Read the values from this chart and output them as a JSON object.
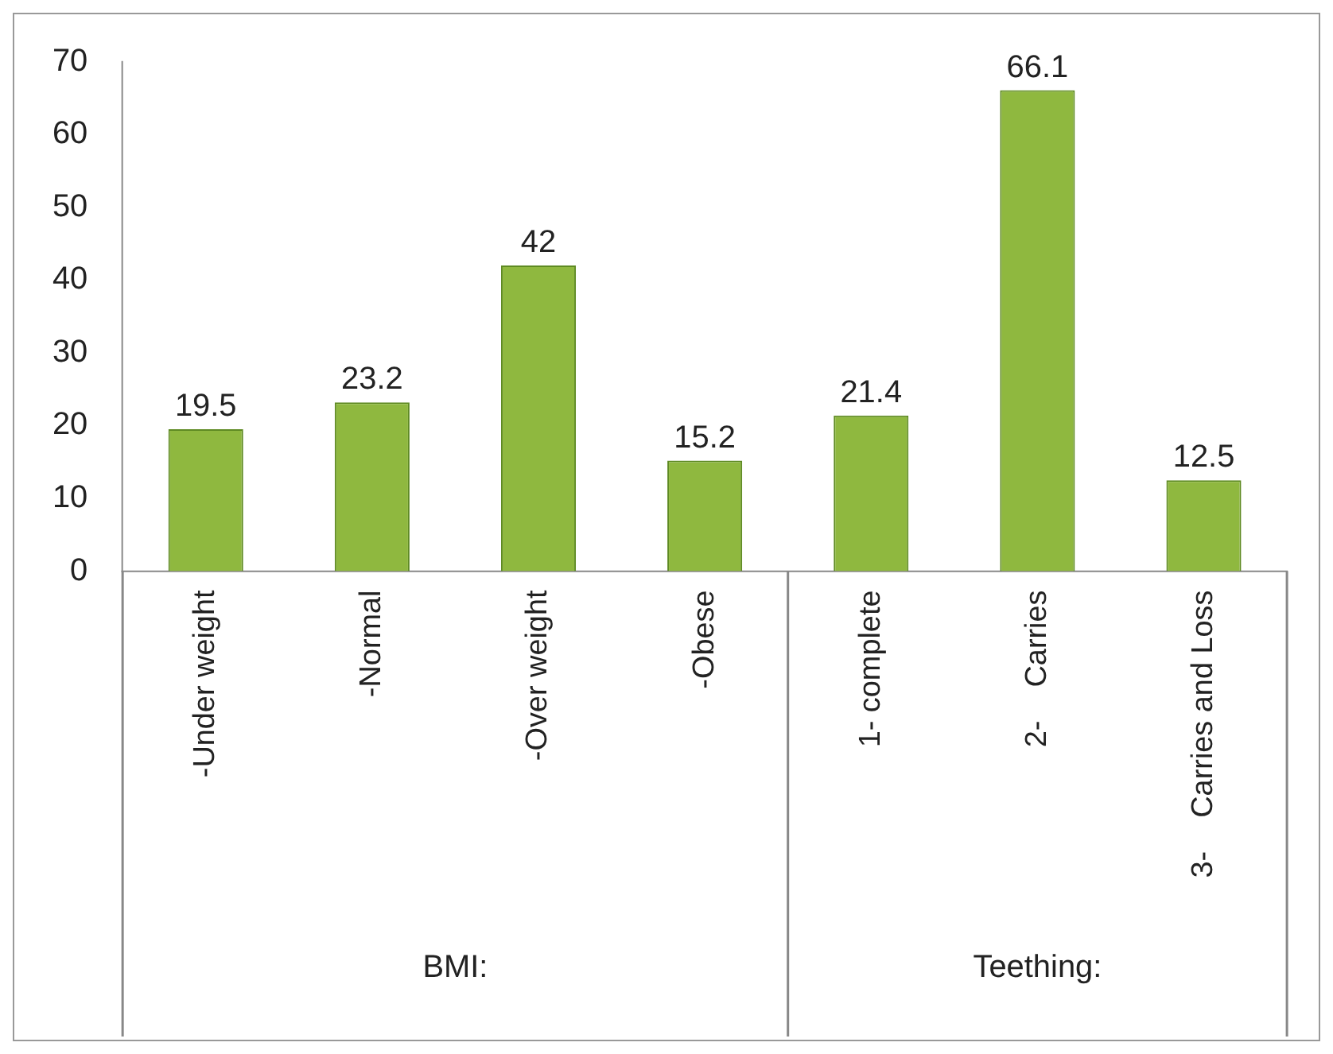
{
  "chart_data": {
    "type": "bar",
    "categories": [
      "-Under weight",
      "-Normal",
      "-Over weight",
      "-Obese",
      "1- complete",
      "2-    Carries",
      "3-    Carries and Loss"
    ],
    "values": [
      19.5,
      23.2,
      42,
      15.2,
      21.4,
      66.1,
      12.5
    ],
    "color": "#8fb83f",
    "ylim": [
      0,
      70
    ],
    "yticks": [
      0,
      10,
      20,
      30,
      40,
      50,
      60,
      70
    ],
    "grid": false,
    "legend": false,
    "data_labels": true,
    "annotations": [
      "BMI:",
      "Teething:"
    ]
  }
}
